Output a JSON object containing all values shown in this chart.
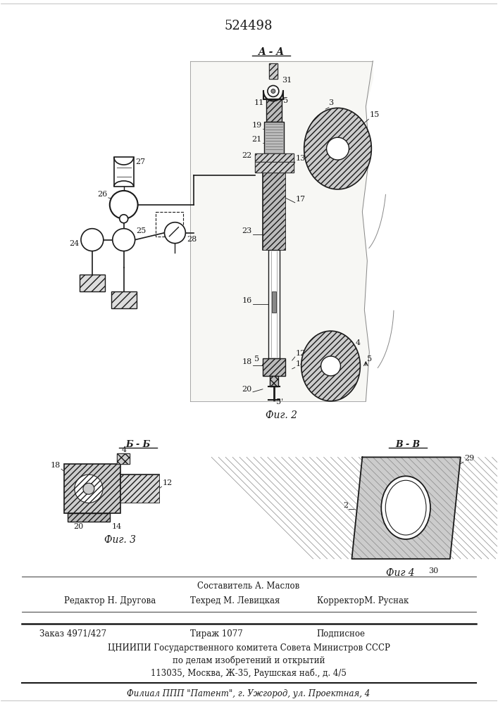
{
  "patent_number": "524498",
  "section_label_top": "A - A",
  "fig2_label": "Фиг. 2",
  "fig3_label": "Фиг. 3",
  "fig4_label": "Фиг 4",
  "section_b_b": "Б - Б",
  "section_v_v": "В - В",
  "footer_line1": "Составитель А. Маслов",
  "footer_line2_left": "Редактор Н. Другова",
  "footer_line2_mid": "Техред М. Левицкая",
  "footer_line2_right": "КорректорМ. Руснак",
  "footer_line3_left": "Заказ 4971/427",
  "footer_line3_mid": "Тираж 1077",
  "footer_line3_right": "Подписное",
  "footer_line4": "ЦНИИПИ Государственного комитета Совета Министров СССР",
  "footer_line5": "по делам изобретений и открытий",
  "footer_line6": "113035, Москва, Ж-35, Раушская наб., д. 4/5",
  "footer_line7": "Филиал ППП \"Патент\", г. Ужгород, ул. Проектная, 4",
  "text_color": "#1a1a1a"
}
